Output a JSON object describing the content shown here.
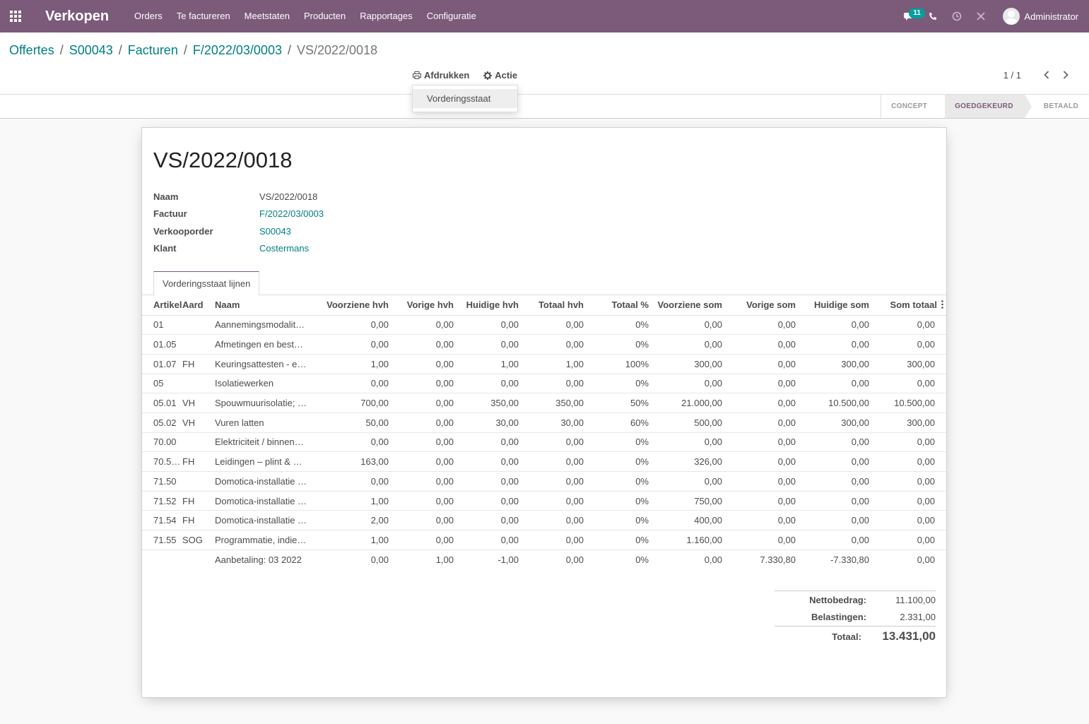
{
  "navbar": {
    "brand": "Verkopen",
    "menu": [
      "Orders",
      "Te factureren",
      "Meetstaten",
      "Producten",
      "Rapportages",
      "Configuratie"
    ],
    "chat_badge": "11",
    "user_name": "Administrator",
    "color": "#7c5a7a"
  },
  "breadcrumb": {
    "items": [
      "Offertes",
      "S00043",
      "Facturen",
      "F/2022/03/0003"
    ],
    "current": "VS/2022/0018"
  },
  "actions": {
    "print_label": "Afdrukken",
    "action_label": "Actie",
    "dropdown_item": "Vorderingsstaat"
  },
  "pager": {
    "value": "1 / 1"
  },
  "status": {
    "steps": [
      "CONCEPT",
      "GOEDGEKEURD",
      "BETAALD"
    ],
    "active": "GOEDGEKEURD"
  },
  "form": {
    "title": "VS/2022/0018",
    "fields": [
      {
        "label": "Naam",
        "value": "VS/2022/0018"
      },
      {
        "label": "Factuur",
        "value": "F/2022/03/0003"
      },
      {
        "label": "Verkooporder",
        "value": "S00043"
      },
      {
        "label": "Klant",
        "value": "Costermans"
      }
    ],
    "tab": "Vorderingsstaat lijnen"
  },
  "table": {
    "headers": [
      "Artikel",
      "Aard",
      "Naam",
      "Voorziene hvh",
      "Vorige hvh",
      "Huidige hvh",
      "Totaal hvh",
      "Totaal %",
      "Voorziene som",
      "Vorige som",
      "Huidige som",
      "Som totaal"
    ],
    "rows": [
      [
        "01",
        "",
        "Aannemingsmodalit…",
        "0,00",
        "0,00",
        "0,00",
        "0,00",
        "0%",
        "0,00",
        "0,00",
        "0,00",
        "0,00"
      ],
      [
        "01.05",
        "",
        "Afmetingen en besta…",
        "0,00",
        "0,00",
        "0,00",
        "0,00",
        "0%",
        "0,00",
        "0,00",
        "0,00",
        "0,00"
      ],
      [
        "01.07",
        "FH",
        "Keuringsattesten - el…",
        "1,00",
        "0,00",
        "1,00",
        "1,00",
        "100%",
        "300,00",
        "0,00",
        "300,00",
        "300,00"
      ],
      [
        "05",
        "",
        "Isolatiewerken",
        "0,00",
        "0,00",
        "0,00",
        "0,00",
        "0%",
        "0,00",
        "0,00",
        "0,00",
        "0,00"
      ],
      [
        "05.01",
        "VH",
        "Spouwmuurisolatie; …",
        "700,00",
        "0,00",
        "350,00",
        "350,00",
        "50%",
        "21.000,00",
        "0,00",
        "10.500,00",
        "10.500,00"
      ],
      [
        "05.02",
        "VH",
        "Vuren latten",
        "50,00",
        "0,00",
        "30,00",
        "30,00",
        "60%",
        "500,00",
        "0,00",
        "300,00",
        "300,00"
      ],
      [
        "70.00",
        "",
        "Elektriciteit / binnen…",
        "0,00",
        "0,00",
        "0,00",
        "0,00",
        "0%",
        "0,00",
        "0,00",
        "0,00",
        "0,00"
      ],
      [
        "70.55.…",
        "FH",
        "Leidingen – plint & w…",
        "163,00",
        "0,00",
        "0,00",
        "0,00",
        "0%",
        "326,00",
        "0,00",
        "0,00",
        "0,00"
      ],
      [
        "71.50",
        "",
        "Domotica-installatie …",
        "0,00",
        "0,00",
        "0,00",
        "0,00",
        "0%",
        "0,00",
        "0,00",
        "0,00",
        "0,00"
      ],
      [
        "71.52",
        "FH",
        "Domotica-installatie …",
        "1,00",
        "0,00",
        "0,00",
        "0,00",
        "0%",
        "750,00",
        "0,00",
        "0,00",
        "0,00"
      ],
      [
        "71.54",
        "FH",
        "Domotica-installatie …",
        "2,00",
        "0,00",
        "0,00",
        "0,00",
        "0%",
        "400,00",
        "0,00",
        "0,00",
        "0,00"
      ],
      [
        "71.55",
        "SOG",
        "Programmatie, indie…",
        "1,00",
        "0,00",
        "0,00",
        "0,00",
        "0%",
        "1.160,00",
        "0,00",
        "0,00",
        "0,00"
      ],
      [
        "",
        "",
        "Aanbetaling: 03 2022",
        "0,00",
        "1,00",
        "-1,00",
        "0,00",
        "0%",
        "0,00",
        "7.330,80",
        "-7.330,80",
        "0,00"
      ]
    ]
  },
  "totals": {
    "net_label": "Nettobedrag:",
    "net_value": "11.100,00",
    "tax_label": "Belastingen:",
    "tax_value": "2.331,00",
    "total_label": "Totaal:",
    "total_value": "13.431,00"
  }
}
